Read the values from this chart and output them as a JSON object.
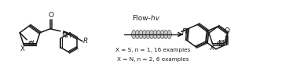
{
  "background_color": "#ffffff",
  "figsize": [
    3.68,
    1.01
  ],
  "dpi": 100,
  "line_color": "#1a1a1a",
  "text_color": "#1a1a1a",
  "label_xs1": "X = S, n = 1, 16 examples",
  "label_xs2": "X = N, n = 2, 6 examples",
  "flow_label": "Flow-",
  "flow_italic": "hv",
  "coil_fill": "#cccccc",
  "coil_edge": "#444444"
}
